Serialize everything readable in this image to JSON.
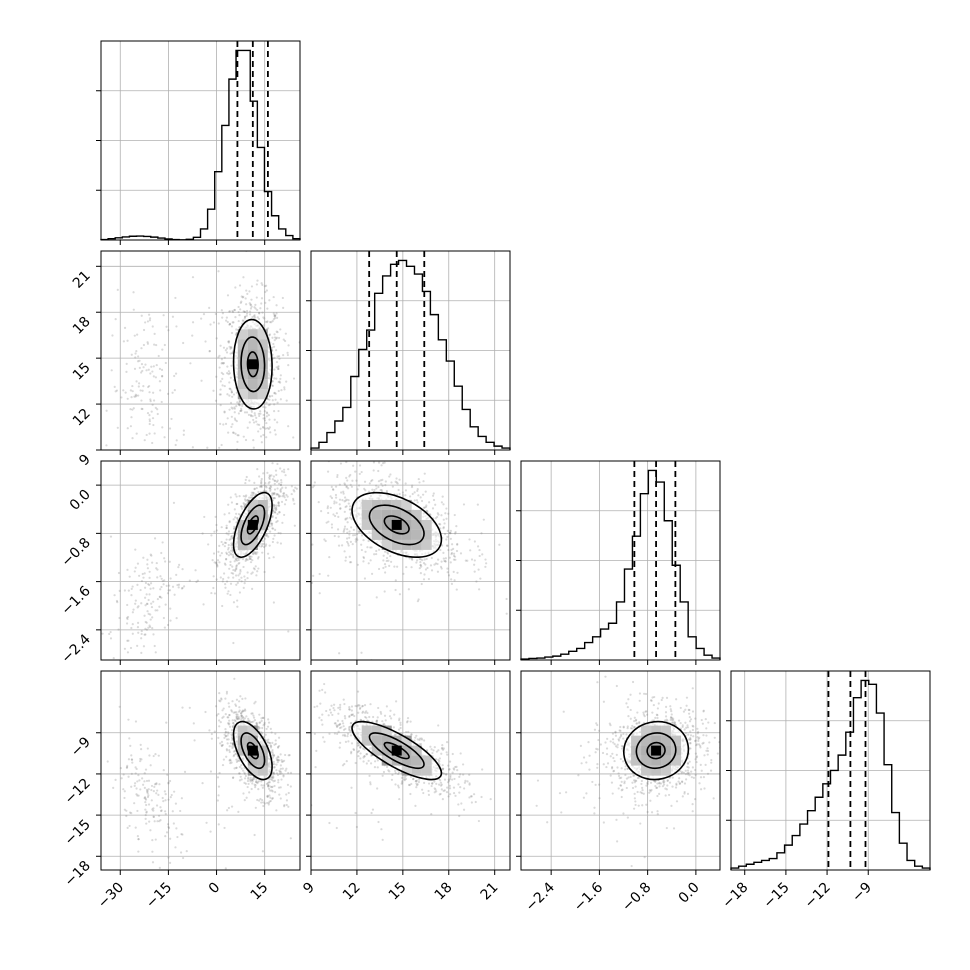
{
  "chart_data": {
    "type": "corner",
    "title": "",
    "grid": true,
    "parameters": [
      {
        "index": 0,
        "range": [
          -36,
          26
        ],
        "ticks": [
          -30,
          -15,
          0,
          15
        ],
        "tick_labels": [
          "−30",
          "−15",
          "0",
          "15"
        ],
        "quantiles": [
          6.5,
          11.3,
          16.0
        ],
        "median": 11.3,
        "sd": 3.7
      },
      {
        "index": 1,
        "range": [
          9,
          22
        ],
        "ticks": [
          9,
          12,
          15,
          18,
          21
        ],
        "tick_labels": [
          "9",
          "12",
          "15",
          "18",
          "21"
        ],
        "quantiles": [
          12.8,
          14.6,
          16.4
        ],
        "median": 14.6,
        "sd": 1.8
      },
      {
        "index": 2,
        "range": [
          -2.9,
          0.4
        ],
        "ticks": [
          -2.4,
          -1.6,
          -0.8,
          0.0
        ],
        "tick_labels": [
          "−2.4",
          "−1.6",
          "−0.8",
          "0.0"
        ],
        "quantiles": [
          -1.02,
          -0.66,
          -0.34
        ],
        "median": -0.66,
        "sd": 0.33
      },
      {
        "index": 3,
        "range": [
          -19,
          -4.5
        ],
        "ticks": [
          -18,
          -15,
          -12,
          -9
        ],
        "tick_labels": [
          "−18",
          "−15",
          "−12",
          "−9"
        ],
        "quantiles": [
          -11.9,
          -10.3,
          -9.2
        ],
        "median": -10.3,
        "sd": 1.3
      }
    ],
    "histograms": [
      {
        "param": 0,
        "counts": [
          0.2,
          0.6,
          1,
          1.4,
          1.7,
          1.8,
          1.6,
          1.3,
          0.9,
          0.5,
          0.2,
          0.1,
          0.3,
          1.2,
          5,
          14,
          31,
          52,
          73,
          86,
          86,
          63,
          42,
          22,
          11,
          5,
          2,
          0.6
        ]
      },
      {
        "param": 1,
        "counts": [
          1,
          4,
          9,
          15,
          22,
          38,
          52,
          62,
          81,
          90,
          96,
          98,
          95,
          91,
          82,
          70,
          57,
          46,
          33,
          21,
          12,
          7,
          4,
          2,
          1
        ]
      },
      {
        "param": 2,
        "counts": [
          0.5,
          0.8,
          1,
          1.5,
          2,
          3,
          4.5,
          6,
          9,
          12,
          16,
          19,
          30,
          47,
          64,
          86,
          98,
          92,
          72,
          49,
          30,
          12,
          6,
          2.5,
          1
        ]
      },
      {
        "param": 3,
        "counts": [
          1,
          2,
          3,
          4,
          5,
          6,
          9,
          13,
          18,
          24,
          31,
          38,
          45,
          52,
          60,
          72,
          90,
          99,
          97,
          82,
          55,
          30,
          14,
          5,
          2,
          1
        ]
      }
    ],
    "pairs": [
      {
        "x_param": 0,
        "y_param": 1,
        "correlation": -0.05
      },
      {
        "x_param": 0,
        "y_param": 2,
        "correlation": 0.6
      },
      {
        "x_param": 1,
        "y_param": 2,
        "correlation": -0.45
      },
      {
        "x_param": 0,
        "y_param": 3,
        "correlation": -0.55
      },
      {
        "x_param": 1,
        "y_param": 3,
        "correlation": -0.78
      },
      {
        "x_param": 2,
        "y_param": 3,
        "correlation": 0.05
      }
    ],
    "contour_levels": [
      0.39,
      0.86,
      1.41
    ]
  }
}
